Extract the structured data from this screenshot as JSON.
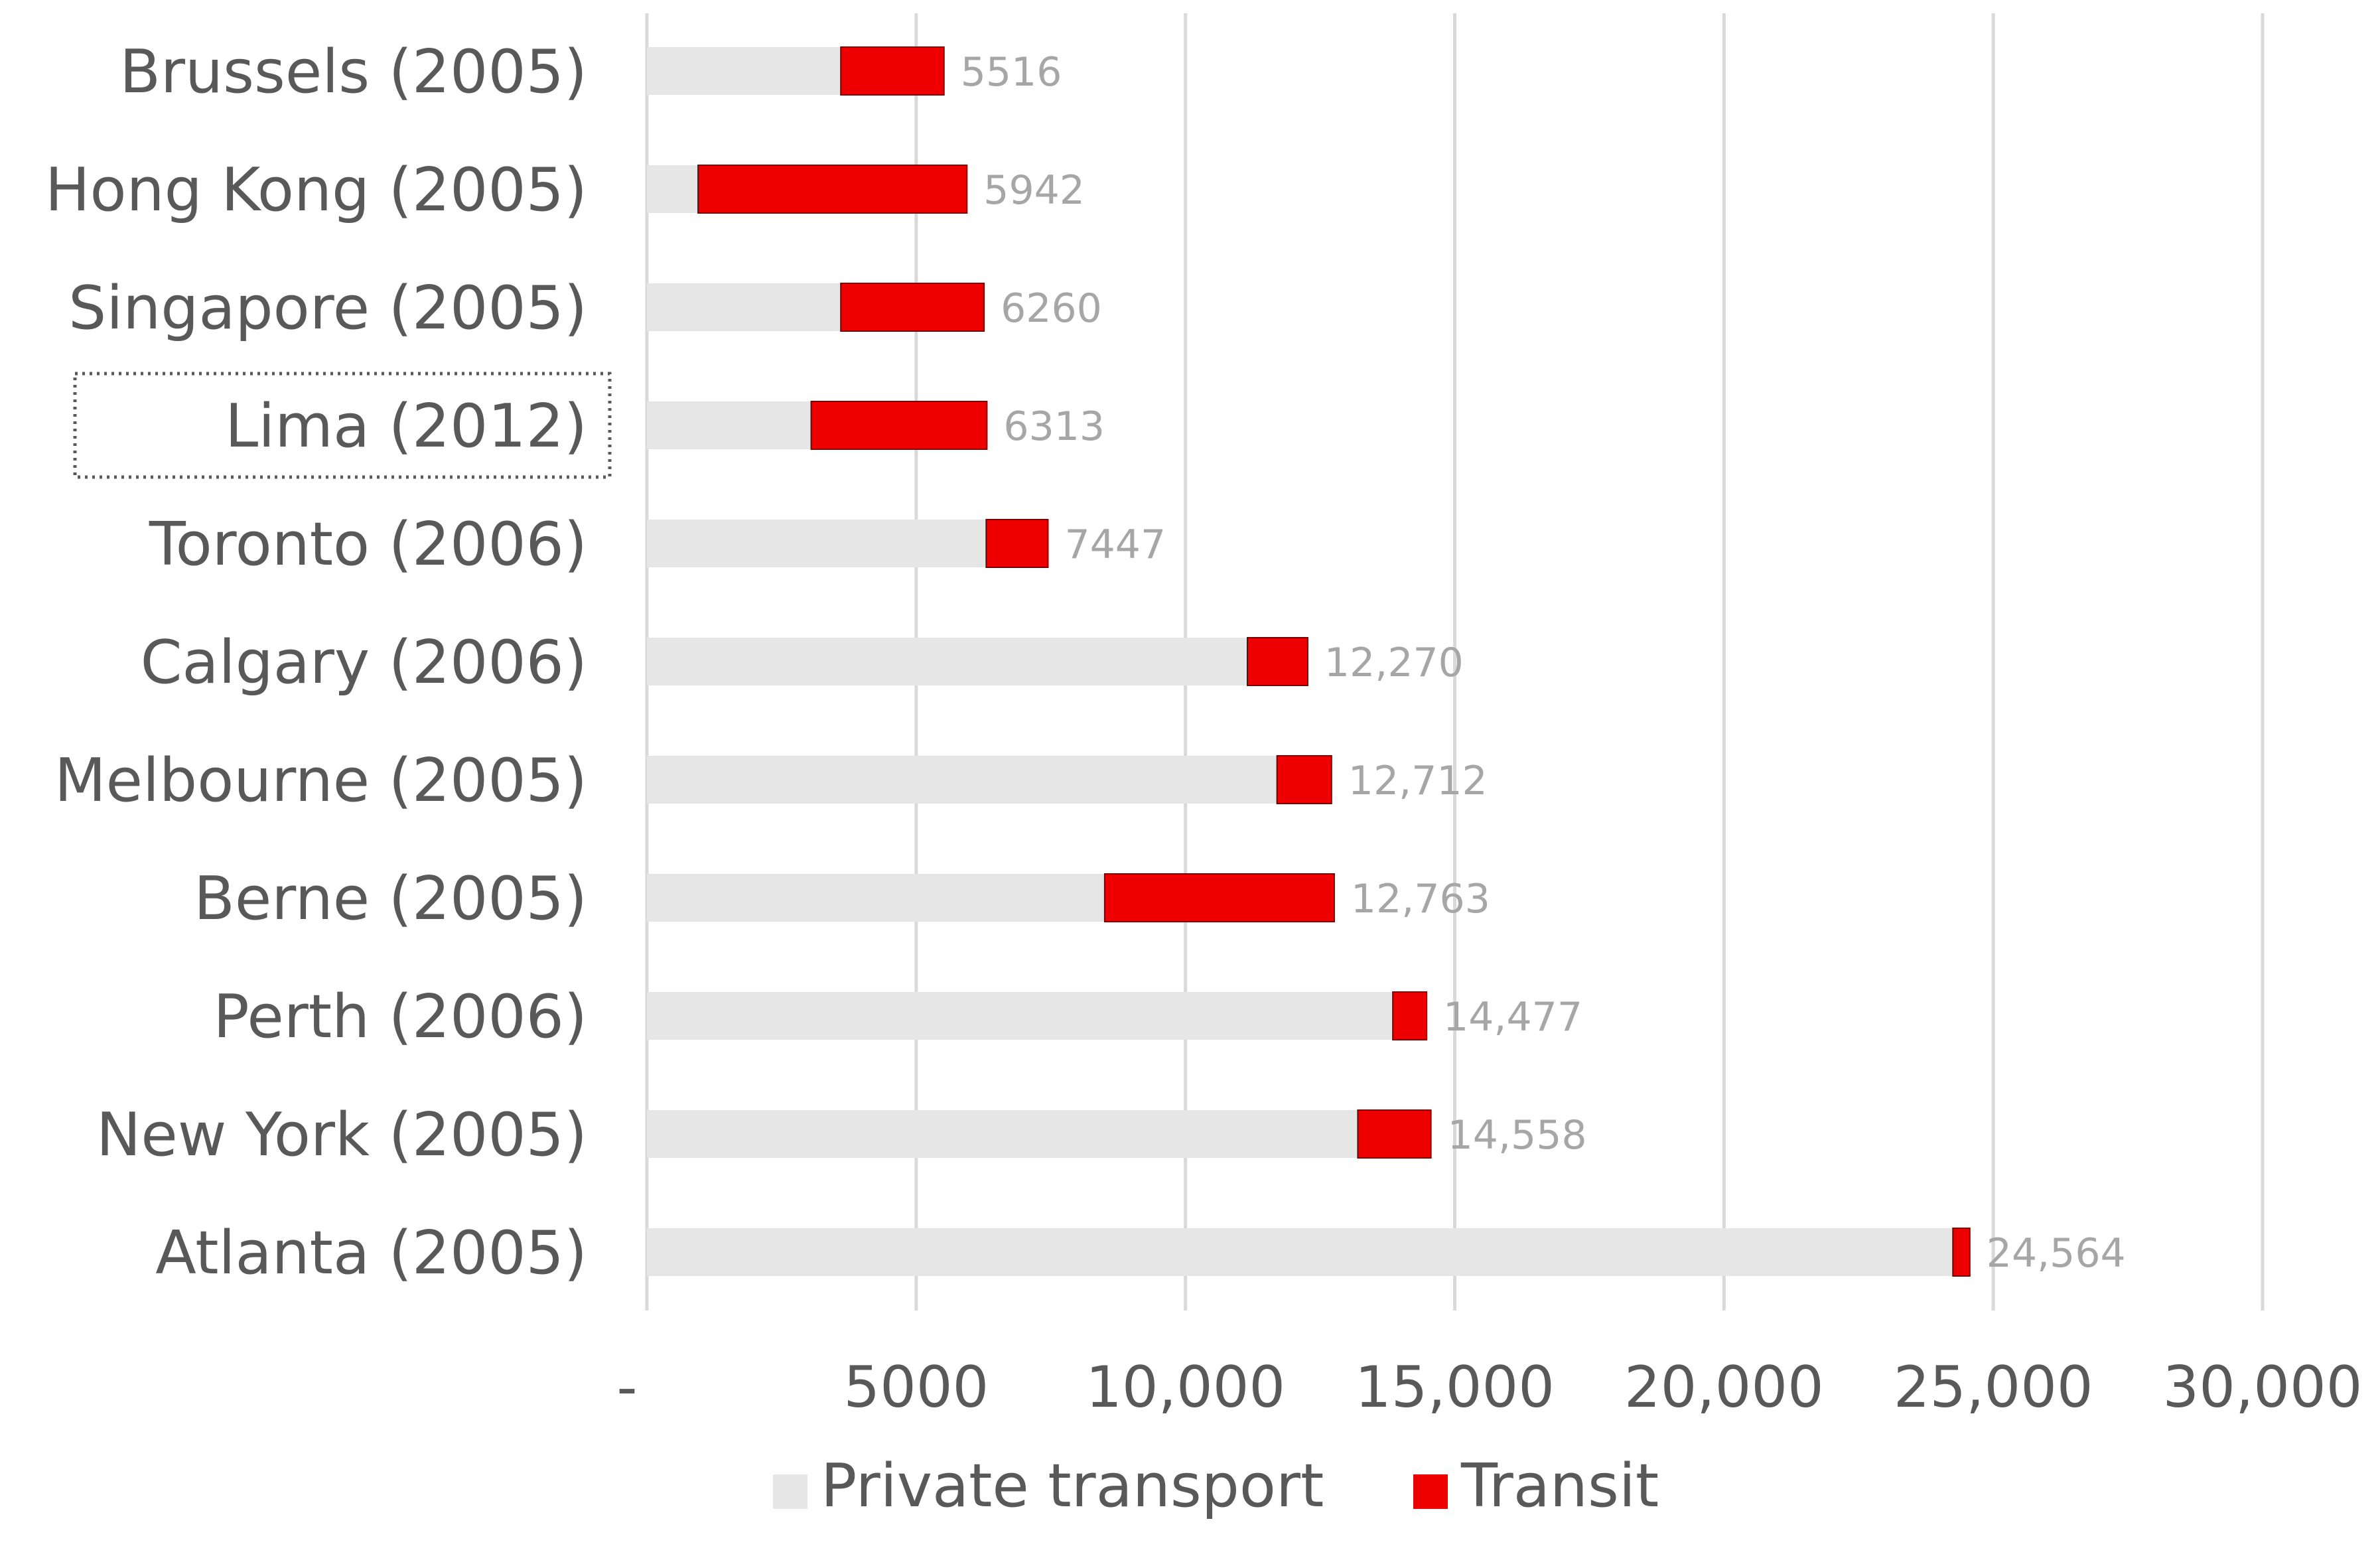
{
  "chart_data": {
    "type": "bar",
    "orientation": "horizontal",
    "stacked": true,
    "categories": [
      "Brussels (2005)",
      "Hong Kong (2005)",
      "Singapore (2005)",
      "Lima (2012)",
      "Toronto (2006)",
      "Calgary (2006)",
      "Melbourne (2005)",
      "Berne (2005)",
      "Perth (2006)",
      "New York (2005)",
      "Atlanta (2005)"
    ],
    "series": [
      {
        "name": "Private transport",
        "color": "#e6e6e6",
        "values": [
          3600,
          950,
          3600,
          3050,
          6300,
          11150,
          11700,
          8500,
          13850,
          13200,
          24250
        ]
      },
      {
        "name": "Transit",
        "color": "#ee0000",
        "values": [
          1916,
          4992,
          2660,
          3263,
          1147,
          1120,
          1012,
          4263,
          627,
          1358,
          314
        ]
      }
    ],
    "totals": [
      5516,
      5942,
      6260,
      6313,
      7447,
      12270,
      12712,
      12763,
      14477,
      14558,
      24564
    ],
    "data_labels": [
      "5516",
      "5942",
      "6260",
      "6313",
      "7447",
      "12,270",
      "12,712",
      "12,763",
      "14,477",
      "14,558",
      "24,564"
    ],
    "xlim": [
      0,
      30000
    ],
    "xticks": [
      0,
      5000,
      10000,
      15000,
      20000,
      25000,
      30000
    ],
    "xtick_labels": [
      "-",
      "5000",
      "10,000",
      "15,000",
      "20,000",
      "25,000",
      "30,000"
    ],
    "title": "",
    "xlabel": "",
    "ylabel": "",
    "grid": "vertical",
    "legend_position": "bottom",
    "selected_category": "Lima (2012)"
  }
}
